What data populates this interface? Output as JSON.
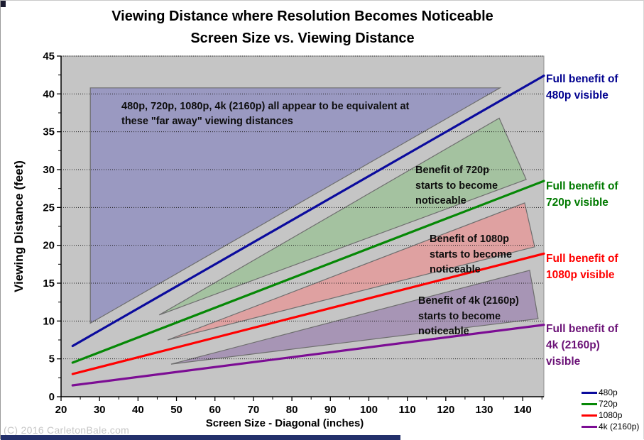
{
  "chart_data": {
    "type": "line",
    "title": "Viewing Distance where Resolution Becomes Noticeable",
    "subtitle": "Screen Size vs. Viewing Distance",
    "xlabel": "Screen Size - Diagonal (inches)",
    "ylabel": "Viewing Distance (feet)",
    "xlim": [
      20,
      145.5
    ],
    "ylim": [
      0,
      45
    ],
    "x_ticks": [
      20,
      30,
      40,
      50,
      60,
      70,
      80,
      90,
      100,
      110,
      120,
      130,
      140
    ],
    "x_minor_step": 5,
    "y_ticks": [
      0,
      5,
      10,
      15,
      20,
      25,
      30,
      35,
      40,
      45
    ],
    "y_minor_step": 2.5,
    "grid": "horizontal-dotted",
    "plot_bg": "#c5c5c5",
    "grid_color": "#1c1c1c",
    "legend_position": "outside-bottom-right",
    "series": [
      {
        "name": "480p",
        "color": "#0b0b9d",
        "points": [
          [
            23,
            6.7
          ],
          [
            145.5,
            42.4
          ]
        ]
      },
      {
        "name": "720p",
        "color": "#068806",
        "points": [
          [
            23,
            4.5
          ],
          [
            145.5,
            28.5
          ]
        ]
      },
      {
        "name": "1080p",
        "color": "#ff0000",
        "points": [
          [
            23,
            3.0
          ],
          [
            145.5,
            18.9
          ]
        ]
      },
      {
        "name": "4k (2160p)",
        "color": "#7c0d94",
        "points": [
          [
            23,
            1.5
          ],
          [
            145.5,
            9.5
          ]
        ]
      }
    ],
    "regions": [
      {
        "name": "equivalent-region",
        "fill": "#9a99c1",
        "stroke": "#6e6e6e",
        "points": [
          [
            27.6,
            9.7
          ],
          [
            27.6,
            40.8
          ],
          [
            134.1,
            40.8
          ]
        ]
      },
      {
        "name": "720p-benefit-region",
        "fill": "#a4c2a0",
        "stroke": "#6e6e6e",
        "points": [
          [
            45.5,
            10.8
          ],
          [
            133.9,
            36.8
          ],
          [
            140.9,
            28.7
          ]
        ]
      },
      {
        "name": "1080p-benefit-region",
        "fill": "#dfa1a1",
        "stroke": "#6e6e6e",
        "points": [
          [
            47.7,
            7.5
          ],
          [
            140.5,
            25.6
          ],
          [
            143.1,
            19.8
          ]
        ]
      },
      {
        "name": "4k-benefit-region",
        "fill": "#a795b5",
        "stroke": "#6e6e6e",
        "points": [
          [
            48.6,
            4.3
          ],
          [
            141.8,
            16.7
          ],
          [
            144.0,
            10.3
          ]
        ]
      }
    ]
  },
  "annotations": [
    {
      "lines": [
        "480p, 720p, 1080p, 4k (2160p) all appear to be equivalent at",
        "these \"far away\" viewing distances"
      ]
    },
    {
      "lines": [
        "Benefit of 720p",
        "starts to become",
        "noticeable"
      ]
    },
    {
      "lines": [
        "Benefit of 1080p",
        "starts to become",
        "noticeable"
      ]
    },
    {
      "lines": [
        "Benefit of 4k (2160p)",
        "starts to become",
        "noticeable"
      ]
    }
  ],
  "side_labels": [
    {
      "color": "#00008f",
      "lines": [
        "Full benefit of",
        "480p visible"
      ]
    },
    {
      "color": "#007a00",
      "lines": [
        "Full benefit of",
        "720p visible"
      ]
    },
    {
      "color": "#ff0000",
      "lines": [
        "Full benefit of",
        "1080p visible"
      ]
    },
    {
      "color": "#6b1277",
      "lines": [
        "Full benefit of",
        "4k (2160p)",
        "visible"
      ]
    }
  ],
  "legend_items": [
    {
      "label": "480p",
      "color": "#0b0b9d"
    },
    {
      "label": "720p",
      "color": "#068806"
    },
    {
      "label": "1080p",
      "color": "#ff0000"
    },
    {
      "label": "4k (2160p)",
      "color": "#7c0d94"
    }
  ],
  "watermark": "(C) 2016 CarletonBale.com"
}
